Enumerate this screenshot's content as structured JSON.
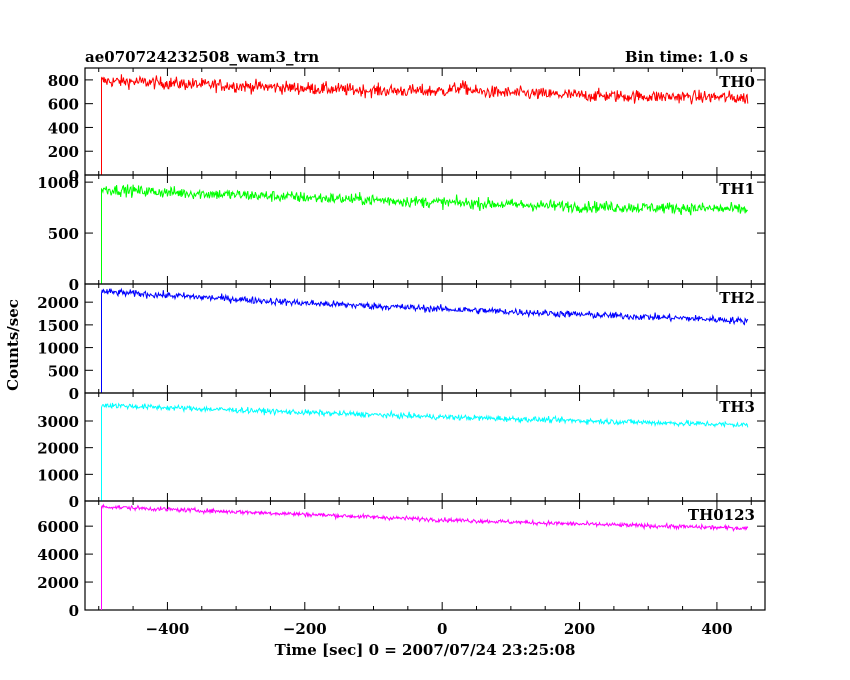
{
  "chart_data": {
    "type": "line",
    "title": "ae070724232508_wam3_trn",
    "subtitle": "Bin time: 1.0 s",
    "xlabel": "Time [sec] 0 = 2007/07/24 23:25:08",
    "ylabel": "Counts/sec",
    "xlim": [
      -520,
      470
    ],
    "xticks": [
      -400,
      -200,
      0,
      200,
      400
    ],
    "x_start": -496,
    "x_end": 445,
    "grid": false,
    "series": [
      {
        "name": "TH0",
        "color": "#ff0000",
        "ylim": [
          0,
          900
        ],
        "yticks": [
          0,
          200,
          400,
          600,
          800
        ],
        "level_points": [
          [
            -496,
            790
          ],
          [
            -450,
            785
          ],
          [
            -350,
            760
          ],
          [
            -200,
            730
          ],
          [
            -100,
            710
          ],
          [
            0,
            705
          ],
          [
            30,
            740
          ],
          [
            50,
            700
          ],
          [
            100,
            690
          ],
          [
            200,
            670
          ],
          [
            300,
            660
          ],
          [
            400,
            655
          ],
          [
            445,
            645
          ]
        ],
        "noise": 38
      },
      {
        "name": "TH1",
        "color": "#00ff00",
        "ylim": [
          0,
          1070
        ],
        "yticks": [
          0,
          500,
          1000
        ],
        "level_points": [
          [
            -496,
            930
          ],
          [
            -400,
            900
          ],
          [
            -200,
            850
          ],
          [
            0,
            800
          ],
          [
            200,
            760
          ],
          [
            400,
            740
          ],
          [
            445,
            730
          ]
        ],
        "noise": 40
      },
      {
        "name": "TH2",
        "color": "#0000ff",
        "ylim": [
          0,
          2400
        ],
        "yticks": [
          0,
          500,
          1000,
          1500,
          2000
        ],
        "level_points": [
          [
            -496,
            2230
          ],
          [
            -400,
            2150
          ],
          [
            -200,
            1980
          ],
          [
            0,
            1850
          ],
          [
            200,
            1730
          ],
          [
            400,
            1620
          ],
          [
            445,
            1580
          ]
        ],
        "noise": 55
      },
      {
        "name": "TH3",
        "color": "#00ffff",
        "ylim": [
          0,
          4050
        ],
        "yticks": [
          0,
          1000,
          2000,
          3000
        ],
        "level_points": [
          [
            -496,
            3600
          ],
          [
            -400,
            3500
          ],
          [
            -200,
            3320
          ],
          [
            0,
            3150
          ],
          [
            200,
            3010
          ],
          [
            400,
            2880
          ],
          [
            445,
            2850
          ]
        ],
        "noise": 75
      },
      {
        "name": "TH0123",
        "color": "#ff00ff",
        "ylim": [
          0,
          7800
        ],
        "yticks": [
          0,
          2000,
          4000,
          6000
        ],
        "level_points": [
          [
            -496,
            7400
          ],
          [
            -400,
            7200
          ],
          [
            -200,
            6850
          ],
          [
            0,
            6450
          ],
          [
            200,
            6150
          ],
          [
            400,
            5900
          ],
          [
            445,
            5850
          ]
        ],
        "noise": 110
      }
    ]
  }
}
